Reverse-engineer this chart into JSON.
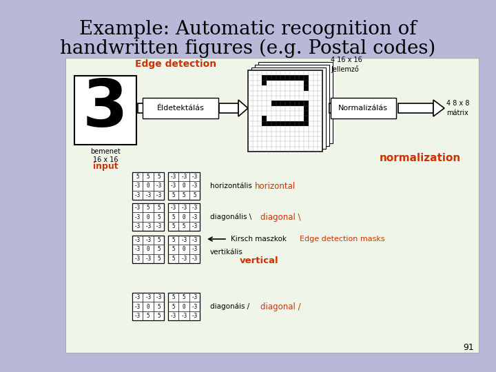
{
  "bg_color": "#b8b8d8",
  "content_bg": "#f0f5ea",
  "title_line1": "Example: Automatic recognition of",
  "title_line2": "handwritten figures (e.g. Postal codes)",
  "title_color": "#000000",
  "title_fontsize": 20,
  "slide_number": "91",
  "orange_color": "#cc3300",
  "black_color": "#000000",
  "labels": {
    "edge_detection": "Edge detection",
    "eldetektalas": "Éldetektálás",
    "bemenet": "bemenet\n16 x 16",
    "input": "input",
    "horizontalis": "horizontális",
    "horizontal": "horizontal",
    "diagonalis_back": "diagonális \\",
    "diagonal_back": "diagonal \\",
    "kirsch_arrow": "←— Kirsch maszkok",
    "kirsch_text": "Kirsch maszkok",
    "edge_masks": "Edge detection masks",
    "vertikalis": "vertikális",
    "vertical": "vertical",
    "diagonalis_fwd": "diagonáis /",
    "diagonal_fwd": "diagonal /",
    "normalizalas": "Normalizálás",
    "normalization": "normalization",
    "jellemzo": "4 16 x 16\nJellemző",
    "matrix": "4 8 x 8\nmátrix"
  },
  "h_mask_left": [
    [
      "5",
      "5",
      "5"
    ],
    [
      "-3",
      "0",
      "-3"
    ],
    [
      "-3",
      "-3",
      "-3"
    ]
  ],
  "h_mask_right": [
    [
      "-3",
      "-3",
      "-3"
    ],
    [
      "-3",
      "0",
      "-3"
    ],
    [
      "5",
      "5",
      "5"
    ]
  ],
  "d1_mask_left": [
    [
      "-3",
      "5",
      "5"
    ],
    [
      "-3",
      "0",
      "5"
    ],
    [
      "-3",
      "-3",
      "-3"
    ]
  ],
  "d1_mask_right": [
    [
      "-3",
      "-3",
      "-3"
    ],
    [
      "5",
      "0",
      "-3"
    ],
    [
      "5",
      "5",
      "-3"
    ]
  ],
  "v_mask_left": [
    [
      "-3",
      "-3",
      "5"
    ],
    [
      "-3",
      "0",
      "5"
    ],
    [
      "-3",
      "-3",
      "5"
    ]
  ],
  "v_mask_right": [
    [
      "5",
      "-3",
      "-3"
    ],
    [
      "5",
      "0",
      "-3"
    ],
    [
      "5",
      "-3",
      "-3"
    ]
  ],
  "d2_mask_left": [
    [
      "-3",
      "-3",
      "-3"
    ],
    [
      "-3",
      "0",
      "5"
    ],
    [
      "-3",
      "5",
      "5"
    ]
  ],
  "d2_mask_right": [
    [
      "5",
      "5",
      "-3"
    ],
    [
      "5",
      "0",
      "-3"
    ],
    [
      "-3",
      "-3",
      "-3"
    ]
  ]
}
